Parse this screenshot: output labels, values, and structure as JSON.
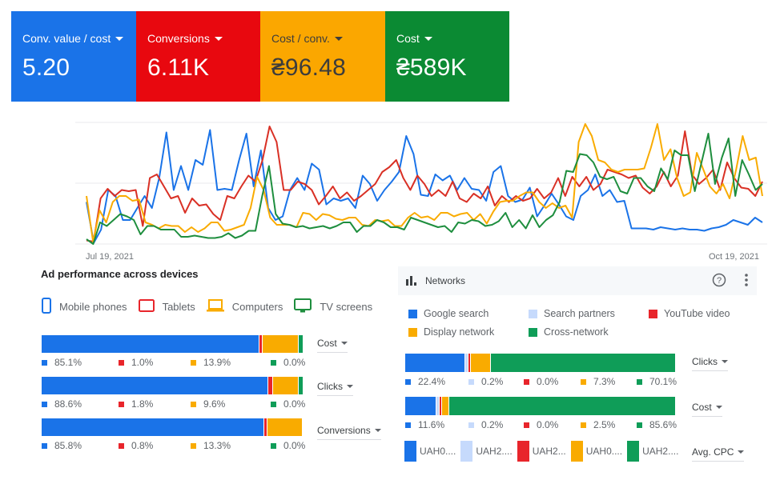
{
  "colors": {
    "blue": "#1a73e8",
    "red": "#e8080f",
    "yellow": "#fba700",
    "green": "#0b8a33",
    "chart_blue": "#1a73e8",
    "chart_red": "#d93025",
    "chart_yellow": "#f9ab00",
    "chart_green": "#1e8e3e",
    "light_blue": "#c6dafc",
    "net_green": "#0f9d58"
  },
  "scorecards": [
    {
      "label": "Conv. value / cost",
      "value": "5.20"
    },
    {
      "label": "Conversions",
      "value": "6.11K"
    },
    {
      "label": "Cost / conv.",
      "value": "₴96.48"
    },
    {
      "label": "Cost",
      "value": "₴589K"
    }
  ],
  "chart_data": {
    "type": "line",
    "title": "",
    "xlabel": "",
    "ylabel": "",
    "x_start_label": "Jul 19, 2021",
    "x_end_label": "Oct 19, 2021",
    "y_scale": "relative (0-100, no tick labels shown)",
    "ylim": [
      0,
      100
    ],
    "grid": true,
    "series": [
      {
        "name": "Conv. value / cost",
        "color": "#1a73e8",
        "values": [
          35,
          1,
          12,
          45,
          40,
          20,
          20,
          30,
          40,
          30,
          55,
          93,
          45,
          65,
          45,
          70,
          66,
          95,
          45,
          46,
          45,
          70,
          92,
          48,
          78,
          30,
          20,
          23,
          45,
          55,
          45,
          67,
          62,
          33,
          38,
          36,
          38,
          30,
          57,
          50,
          36,
          45,
          52,
          60,
          90,
          75,
          41,
          40,
          58,
          53,
          57,
          45,
          55,
          46,
          45,
          36,
          60,
          65,
          40,
          35,
          37,
          47,
          23,
          32,
          42,
          33,
          23,
          20,
          40,
          45,
          58,
          40,
          45,
          35,
          36,
          13,
          13,
          13,
          12,
          14,
          13,
          12,
          13,
          12,
          12,
          11,
          13,
          14,
          16,
          20,
          18,
          16,
          22,
          18
        ]
      },
      {
        "name": "Conversions",
        "color": "#d93025",
        "values": [
          3,
          2,
          38,
          46,
          40,
          45,
          44,
          45,
          15,
          55,
          58,
          48,
          38,
          40,
          26,
          38,
          32,
          33,
          25,
          20,
          40,
          38,
          48,
          57,
          52,
          70,
          98,
          85,
          45,
          45,
          52,
          50,
          45,
          33,
          40,
          48,
          38,
          43,
          36,
          40,
          45,
          50,
          60,
          64,
          70,
          55,
          45,
          57,
          50,
          40,
          45,
          40,
          52,
          38,
          35,
          42,
          38,
          48,
          32,
          40,
          35,
          40,
          36,
          38,
          46,
          38,
          43,
          55,
          40,
          56,
          48,
          56,
          45,
          50,
          62,
          60,
          58,
          55,
          57,
          47,
          42,
          48,
          60,
          48,
          57,
          94,
          58,
          50,
          55,
          62,
          45,
          68,
          55,
          47,
          46,
          40,
          52
        ]
      },
      {
        "name": "Cost / conv.",
        "color": "#f9ab00",
        "values": [
          40,
          2,
          28,
          18,
          35,
          40,
          40,
          36,
          37,
          18,
          16,
          13,
          16,
          15,
          15,
          10,
          14,
          10,
          13,
          18,
          18,
          11,
          12,
          14,
          16,
          30,
          56,
          45,
          22,
          16,
          16,
          16,
          14,
          26,
          25,
          20,
          25,
          24,
          21,
          20,
          22,
          22,
          16,
          15,
          20,
          19,
          20,
          15,
          15,
          22,
          26,
          22,
          23,
          20,
          26,
          26,
          23,
          25,
          26,
          20,
          25,
          17,
          27,
          35,
          36,
          36,
          40,
          43,
          43,
          35,
          30,
          34,
          30,
          32,
          22,
          85,
          100,
          90,
          70,
          68,
          62,
          60,
          62,
          62,
          62,
          63,
          80,
          100,
          70,
          79,
          55,
          40,
          43,
          76,
          62,
          48,
          42,
          50,
          38,
          62,
          90,
          70,
          72,
          40
        ]
      },
      {
        "name": "Cost",
        "color": "#1e8e3e",
        "values": [
          4,
          0,
          18,
          15,
          20,
          25,
          23,
          20,
          8,
          15,
          15,
          12,
          12,
          12,
          6,
          6,
          7,
          6,
          5,
          5,
          6,
          9,
          5,
          7,
          11,
          11,
          40,
          65,
          25,
          17,
          16,
          14,
          15,
          13,
          14,
          15,
          13,
          15,
          18,
          18,
          10,
          15,
          15,
          20,
          18,
          14,
          14,
          12,
          22,
          20,
          18,
          16,
          14,
          15,
          10,
          18,
          17,
          20,
          19,
          15,
          16,
          19,
          26,
          14,
          20,
          13,
          24,
          14,
          20,
          24,
          35,
          61,
          60,
          75,
          74,
          68,
          56,
          54,
          56,
          44,
          42,
          55,
          55,
          48,
          44,
          63,
          54,
          78,
          74,
          74,
          44,
          68,
          92,
          50,
          72,
          88,
          40,
          70,
          58,
          45,
          50
        ]
      }
    ]
  },
  "devices": {
    "title": "Ad performance across devices",
    "legend": [
      {
        "label": "Mobile phones",
        "icon": "smartphone-icon"
      },
      {
        "label": "Tablets",
        "icon": "tablet-icon"
      },
      {
        "label": "Computers",
        "icon": "laptop-icon"
      },
      {
        "label": "TV screens",
        "icon": "tv-icon"
      }
    ],
    "rows": [
      {
        "metric": "Cost",
        "values": [
          85.1,
          1.0,
          13.9,
          0.0
        ],
        "labels": [
          "85.1%",
          "1.0%",
          "13.9%",
          "0.0%"
        ]
      },
      {
        "metric": "Clicks",
        "values": [
          88.6,
          1.8,
          9.6,
          0.0
        ],
        "labels": [
          "88.6%",
          "1.8%",
          "9.6%",
          "0.0%"
        ]
      },
      {
        "metric": "Conversions",
        "values": [
          85.8,
          0.8,
          13.3,
          0.0
        ],
        "labels": [
          "85.8%",
          "0.8%",
          "13.3%",
          "0.0%"
        ]
      }
    ]
  },
  "networks": {
    "title": "Networks",
    "legend": [
      {
        "label": "Google search"
      },
      {
        "label": "Search partners"
      },
      {
        "label": "YouTube video"
      },
      {
        "label": "Display network"
      },
      {
        "label": "Cross-network"
      }
    ],
    "rows": [
      {
        "metric": "Clicks",
        "values": [
          22.4,
          0.2,
          0.0,
          7.3,
          70.1
        ],
        "labels": [
          "22.4%",
          "0.2%",
          "0.0%",
          "7.3%",
          "70.1%"
        ]
      },
      {
        "metric": "Cost",
        "values": [
          11.6,
          0.2,
          0.0,
          2.5,
          85.6
        ],
        "labels": [
          "11.6%",
          "0.2%",
          "0.0%",
          "2.5%",
          "85.6%"
        ]
      }
    ],
    "avg_cpc": {
      "metric": "Avg. CPC",
      "labels": [
        "UAH0....",
        "UAH2....",
        "UAH2...",
        "UAH0....",
        "UAH2...."
      ]
    }
  }
}
